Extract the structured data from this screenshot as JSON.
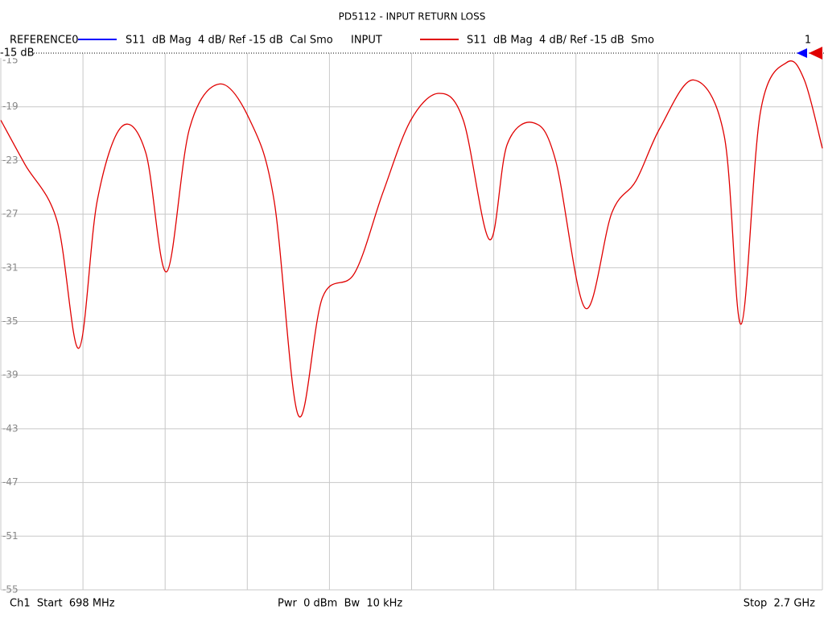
{
  "chart_data": {
    "type": "line",
    "title": "PD5112 - INPUT RETURN LOSS",
    "reference_label": "-15 dB",
    "marker_label": "1",
    "x": [
      698,
      757,
      835,
      888,
      933,
      992,
      1051,
      1102,
      1158,
      1231,
      1305,
      1364,
      1423,
      1482,
      1560,
      1629,
      1697,
      1766,
      1825,
      1889,
      1932,
      1997,
      2050,
      2122,
      2187,
      2246,
      2304,
      2386,
      2461,
      2502,
      2549,
      2613,
      2656,
      2700
    ],
    "series": [
      {
        "name": "REFERENCE0",
        "color": "#0000ff",
        "description": "S11  dB Mag  4 dB/ Ref -15 dB  Cal Smo"
      },
      {
        "name": "INPUT",
        "color": "#e00000",
        "description": "S11  dB Mag  4 dB/ Ref -15 dB  Smo",
        "values": [
          -20.0,
          -23.3,
          -27.5,
          -37.0,
          -26.0,
          -20.5,
          -22.4,
          -31.3,
          -20.6,
          -17.3,
          -20.0,
          -26.0,
          -42.0,
          -33.2,
          -31.4,
          -25.4,
          -20.0,
          -18.0,
          -20.0,
          -28.9,
          -21.8,
          -20.2,
          -23.0,
          -34.0,
          -26.9,
          -24.5,
          -20.6,
          -17.0,
          -21.2,
          -35.2,
          -19.4,
          -15.7,
          -17.0,
          -22.1
        ]
      }
    ],
    "xlim": [
      698,
      2700
    ],
    "x_divisions": 10,
    "ylim": [
      -55,
      -15
    ],
    "yticks": [
      -15,
      -19,
      -23,
      -27,
      -31,
      -35,
      -39,
      -43,
      -47,
      -51,
      -55
    ],
    "grid": true,
    "footer": {
      "start": "Ch1  Start  698 MHz",
      "power": "Pwr  0 dBm  Bw  10 kHz",
      "stop": "Stop  2.7 GHz"
    }
  }
}
